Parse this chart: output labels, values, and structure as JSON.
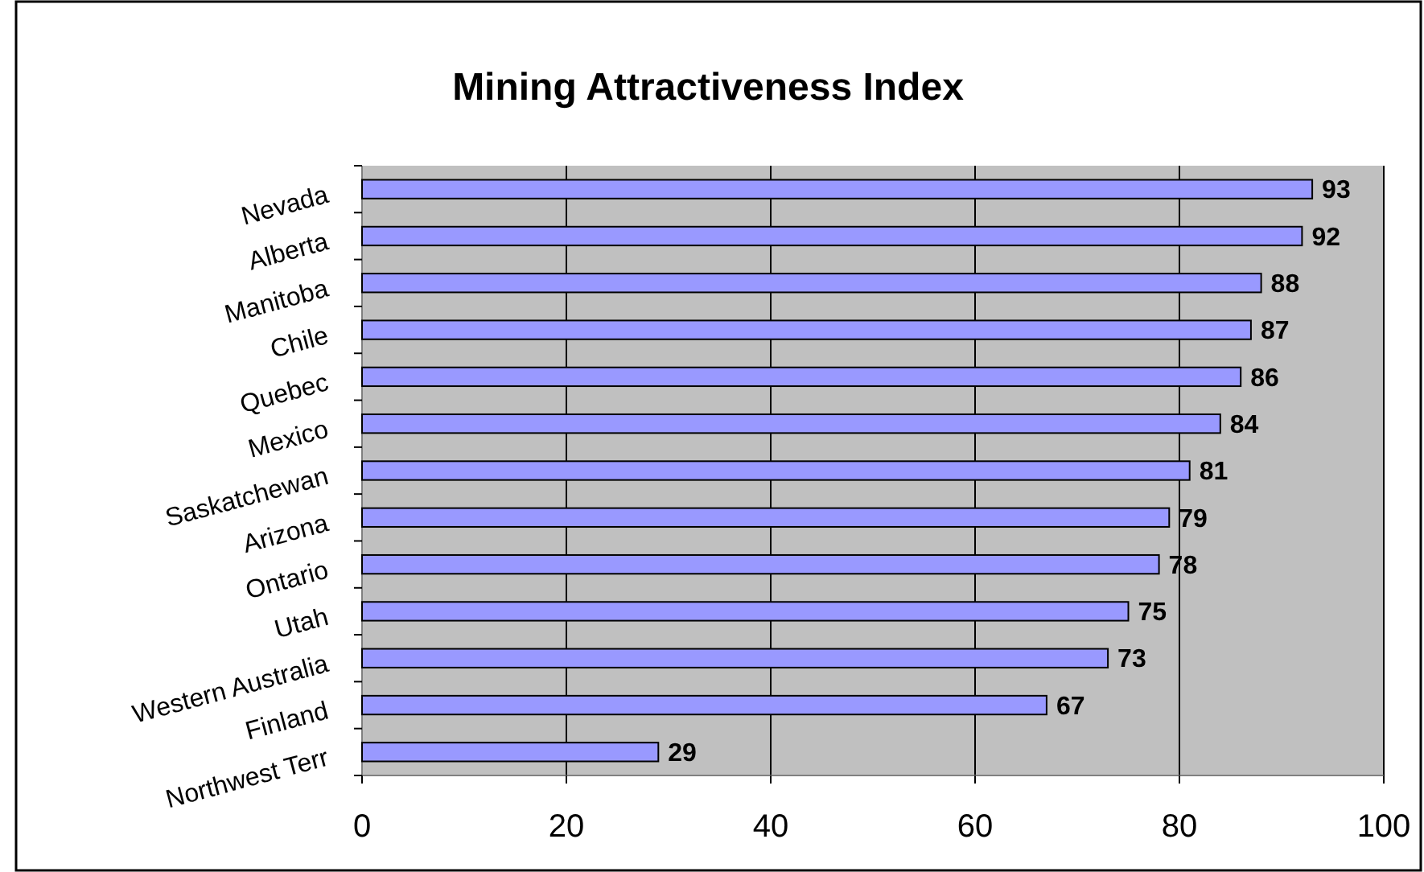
{
  "chart_data": {
    "type": "bar",
    "orientation": "horizontal",
    "title": "Mining Attractiveness Index",
    "categories": [
      "Nevada",
      "Alberta",
      "Manitoba",
      "Chile",
      "Quebec",
      "Mexico",
      "Saskatchewan",
      "Arizona",
      "Ontario",
      "Utah",
      "Western Australia",
      "Finland",
      "Northwest Terr"
    ],
    "values": [
      93,
      92,
      88,
      87,
      86,
      84,
      81,
      79,
      78,
      75,
      73,
      67,
      29
    ],
    "color": "#9999ff",
    "xlim": [
      0,
      100
    ],
    "xticks": [
      0,
      20,
      40,
      60,
      80,
      100
    ],
    "grid": "x",
    "data_labels": true
  }
}
